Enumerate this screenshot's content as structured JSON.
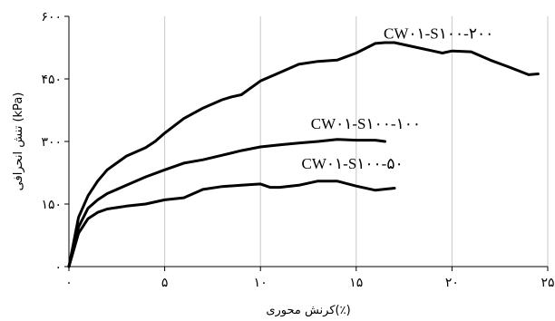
{
  "chart_data": {
    "type": "line",
    "title": "",
    "xlabel": "کرنش محوری(٪)",
    "ylabel": "تنش انحرافی (kPa)",
    "xlim": [
      0,
      25
    ],
    "ylim": [
      0,
      600
    ],
    "x_ticks": [
      0,
      5,
      10,
      15,
      20,
      25
    ],
    "x_tick_labels": [
      "۰",
      "۵",
      "۱۰",
      "۱۵",
      "۲۰",
      "۲۵"
    ],
    "y_ticks": [
      0,
      150,
      300,
      450,
      600
    ],
    "y_tick_labels": [
      "۰",
      "۱۵۰",
      "۳۰۰",
      "۴۵۰",
      "۶۰۰"
    ],
    "grid": "vertical",
    "line_color": "#000000",
    "series": [
      {
        "name": "CW۰۱-S۱۰۰-۲۰۰",
        "x": [
          0,
          0.5,
          1,
          1.5,
          2,
          3,
          4,
          4.5,
          5,
          6,
          7,
          8,
          8.5,
          9,
          10,
          11,
          12,
          13,
          14,
          15,
          16,
          16.5,
          17,
          18,
          19,
          19.5,
          20,
          21,
          22,
          23,
          24,
          24.5
        ],
        "y": [
          0,
          118,
          170,
          205,
          232,
          265,
          285,
          300,
          320,
          355,
          380,
          400,
          407,
          412,
          445,
          465,
          485,
          492,
          495,
          512,
          535,
          537,
          537,
          527,
          517,
          512,
          517,
          515,
          495,
          478,
          460,
          462
        ]
      },
      {
        "name": "CW۰۱-S۱۰۰-۱۰۰",
        "x": [
          0,
          0.5,
          1,
          1.5,
          2,
          3,
          4,
          5,
          6,
          7,
          8,
          9,
          10,
          11,
          12,
          13,
          14,
          15,
          16,
          16.5
        ],
        "y": [
          0,
          95,
          140,
          160,
          175,
          195,
          215,
          232,
          248,
          256,
          267,
          278,
          287,
          292,
          296,
          300,
          305,
          303,
          303,
          300
        ]
      },
      {
        "name": "CW۰۱-S۱۰۰-۵۰",
        "x": [
          0,
          0.5,
          1,
          1.5,
          2,
          3,
          4,
          5,
          6,
          7,
          8,
          9,
          10,
          10.5,
          11,
          12,
          13,
          14,
          15,
          16,
          17
        ],
        "y": [
          0,
          80,
          115,
          130,
          138,
          145,
          150,
          160,
          165,
          185,
          192,
          195,
          198,
          190,
          190,
          195,
          205,
          205,
          193,
          183,
          188
        ]
      }
    ],
    "series_label_anchor_x": [
      19.3,
      15.5,
      14.8
    ],
    "series_label_anchor_y": [
      547,
      330,
      235
    ]
  }
}
